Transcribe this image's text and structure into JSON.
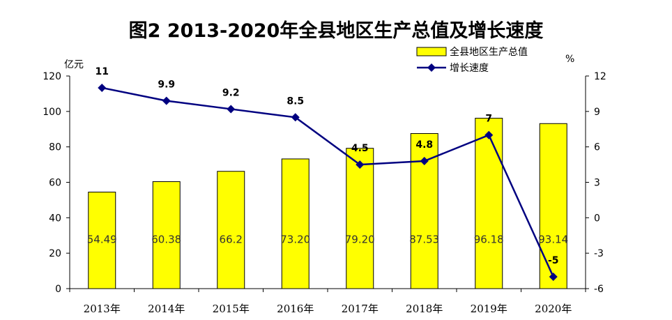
{
  "chart_data": {
    "type": "bar",
    "title": "图2 2013-2020年全县地区生产总值及增长速度",
    "categories": [
      "2013年",
      "2014年",
      "2015年",
      "2016年",
      "2017年",
      "2018年",
      "2019年",
      "2020年"
    ],
    "left_axis": {
      "unit": "亿元",
      "range": [
        0,
        120
      ],
      "ticks": [
        "0",
        "20",
        "40",
        "60",
        "80",
        "100",
        "120"
      ]
    },
    "right_axis": {
      "unit": "%",
      "range": [
        -6,
        12
      ],
      "ticks": [
        "-6",
        "-3",
        "0",
        "3",
        "6",
        "9",
        "12"
      ]
    },
    "series": [
      {
        "name": "全县地区生产总值",
        "type": "bar",
        "axis": "left",
        "color": "#FFFF00",
        "values": [
          54.49,
          60.38,
          66.2,
          73.2,
          79.2,
          87.53,
          96.18,
          93.14
        ],
        "labels": [
          "54.49",
          "60.38",
          "66.2",
          "73.20",
          "79.20",
          "87.53",
          "96.18",
          "93.14"
        ]
      },
      {
        "name": "增长速度",
        "type": "line",
        "axis": "right",
        "color": "#000080",
        "marker": "diamond",
        "values": [
          11,
          9.9,
          9.2,
          8.5,
          4.5,
          4.8,
          7,
          -5
        ],
        "labels": [
          "11",
          "9.9",
          "9.2",
          "8.5",
          "4.5",
          "4.8",
          "7",
          "-5"
        ]
      }
    ],
    "legend_position": "top-right",
    "grid": false
  }
}
